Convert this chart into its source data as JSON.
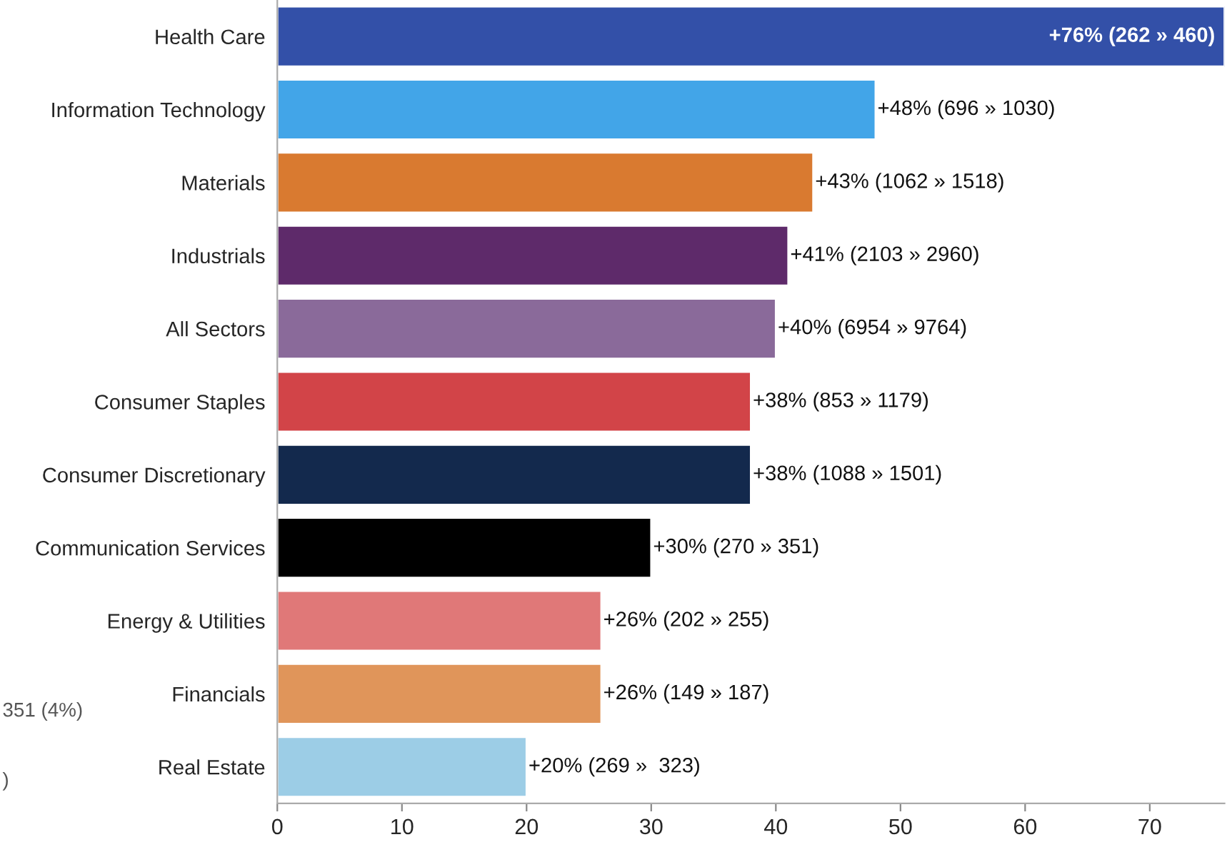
{
  "chart_data": {
    "type": "bar",
    "orientation": "horizontal",
    "categories": [
      "Health Care",
      "Information Technology",
      "Materials",
      "Industrials",
      "All Sectors",
      "Consumer Staples",
      "Consumer Discretionary",
      "Communication Services",
      "Energy & Utilities",
      "Financials",
      "Real Estate"
    ],
    "values": [
      76,
      48,
      43,
      41,
      40,
      38,
      38,
      30,
      26,
      26,
      20
    ],
    "colors": [
      "#3350a8",
      "#42a5e8",
      "#d97a30",
      "#5e2a6a",
      "#8a6a9a",
      "#d24448",
      "#13294d",
      "#000000",
      "#e07878",
      "#e0955a",
      "#9ccde6"
    ],
    "value_labels": [
      "+76% (262 » 460)",
      "+48% (696 » 1030)",
      "+43% (1062 » 1518)",
      "+41% (2103 » 2960)",
      "+40% (6954 » 9764)",
      "+38% (853 » 1179)",
      "+38% (1088 » 1501)",
      "+30% (270 » 351)",
      "+26% (202 » 255)",
      "+26% (149 » 187)",
      "+20% (269 »  323)"
    ],
    "xlim": [
      0,
      76
    ],
    "xticks": [
      0,
      10,
      20,
      30,
      40,
      50,
      60,
      70
    ],
    "grid": false,
    "legend": false,
    "annotations": [
      "351 (4%)",
      ")"
    ]
  }
}
